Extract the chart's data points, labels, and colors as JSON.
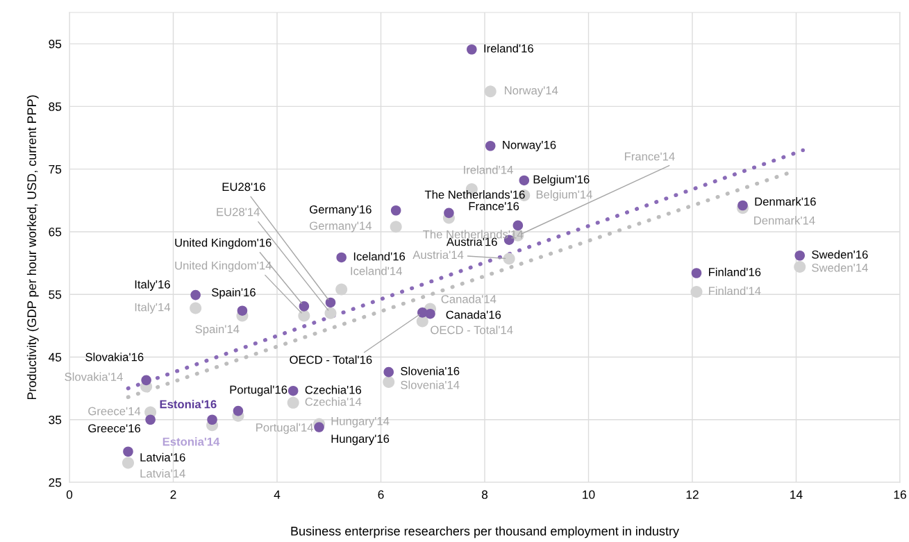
{
  "chart_data": {
    "type": "scatter",
    "xlabel": "Business enterprise researchers per thousand employment in industry",
    "ylabel": "Productivity (GDP per hour worked, USD, current PPP)",
    "xlim": [
      0,
      16
    ],
    "ylim": [
      25,
      100
    ],
    "xticks": [
      0,
      2,
      4,
      6,
      8,
      10,
      12,
      14,
      16
    ],
    "yticks": [
      25,
      35,
      45,
      55,
      65,
      75,
      85,
      95
    ],
    "grid": true,
    "legend": false,
    "marker": "circle",
    "series": [
      {
        "type": "line",
        "color": "#8a6bb8",
        "line_style": "dotted",
        "marker": "none",
        "x": [
          1.13,
          14.13
        ],
        "values": [
          40.0,
          78.0
        ]
      },
      {
        "type": "line",
        "color": "#bdbdbd",
        "line_style": "dotted",
        "marker": "none",
        "x": [
          1.13,
          14.0
        ],
        "values": [
          38.6,
          74.8
        ]
      },
      {
        "color": "#d3d3d3",
        "x": [
          7.75,
          8.11,
          8.76,
          8.64,
          7.31,
          6.29,
          8.47,
          5.24,
          5.03,
          4.52,
          2.43,
          3.33,
          6.95,
          6.8,
          12.97,
          14.07,
          12.08,
          1.48,
          6.15,
          4.31,
          3.25,
          2.75,
          1.56,
          4.81,
          1.13
        ],
        "values": [
          71.8,
          87.4,
          70.8,
          64.4,
          67.2,
          65.8,
          60.7,
          55.8,
          52.0,
          51.6,
          52.8,
          51.6,
          52.7,
          50.7,
          68.8,
          59.4,
          55.4,
          40.3,
          41.0,
          37.7,
          35.6,
          34.1,
          36.2,
          34.3,
          28.1
        ]
      },
      {
        "color": "#7b5aa6",
        "x": [
          7.75,
          8.11,
          8.76,
          7.31,
          6.29,
          8.64,
          8.47,
          5.24,
          5.03,
          4.52,
          2.43,
          3.33,
          6.95,
          6.8,
          12.97,
          14.07,
          12.08,
          1.48,
          6.15,
          4.31,
          3.25,
          2.75,
          1.56,
          4.81,
          1.13
        ],
        "values": [
          94.1,
          78.7,
          73.2,
          68.0,
          68.4,
          66.0,
          63.7,
          60.9,
          53.7,
          53.1,
          54.9,
          52.4,
          51.9,
          52.1,
          69.2,
          61.2,
          58.4,
          41.3,
          42.6,
          39.6,
          36.4,
          35.0,
          35.0,
          33.8,
          29.9
        ]
      }
    ],
    "annotations": [
      {
        "text": "Ireland'16",
        "x": 7.75,
        "y": 94.1
      },
      {
        "text": "Norway'16",
        "x": 8.11,
        "y": 78.7
      },
      {
        "text": "Belgium'16",
        "x": 8.76,
        "y": 73.2
      },
      {
        "text": "The Netherlands'16",
        "x": 7.31,
        "y": 68.0
      },
      {
        "text": "Germany'16",
        "x": 6.29,
        "y": 68.4
      },
      {
        "text": "France'16",
        "x": 8.64,
        "y": 66.0
      },
      {
        "text": "Austria'16",
        "x": 8.47,
        "y": 63.7
      },
      {
        "text": "Iceland'16",
        "x": 5.24,
        "y": 60.9
      },
      {
        "text": "EU28'16",
        "x": 5.03,
        "y": 53.7
      },
      {
        "text": "United Kingdom'16",
        "x": 4.52,
        "y": 53.1
      },
      {
        "text": "Italy'16",
        "x": 2.43,
        "y": 54.9
      },
      {
        "text": "Spain'16",
        "x": 3.33,
        "y": 52.4
      },
      {
        "text": "Canada'16",
        "x": 6.95,
        "y": 51.9
      },
      {
        "text": "OECD - Total'16",
        "x": 6.8,
        "y": 52.1
      },
      {
        "text": "Denmark'16",
        "x": 12.97,
        "y": 69.2
      },
      {
        "text": "Sweden'16",
        "x": 14.07,
        "y": 61.2
      },
      {
        "text": "Finland'16",
        "x": 12.08,
        "y": 58.4
      },
      {
        "text": "Slovakia'16",
        "x": 1.48,
        "y": 41.3
      },
      {
        "text": "Slovenia'16",
        "x": 6.15,
        "y": 42.6
      },
      {
        "text": "Czechia'16",
        "x": 4.31,
        "y": 39.6
      },
      {
        "text": "Portugal'16",
        "x": 3.25,
        "y": 36.4
      },
      {
        "text": "Estonia'16",
        "x": 2.75,
        "y": 35.0
      },
      {
        "text": "Greece'16",
        "x": 1.56,
        "y": 35.0
      },
      {
        "text": "Hungary'16",
        "x": 4.81,
        "y": 33.8
      },
      {
        "text": "Latvia'16",
        "x": 1.13,
        "y": 29.9
      },
      {
        "text": "Ireland'14",
        "x": 7.75,
        "y": 71.8
      },
      {
        "text": "Norway'14",
        "x": 8.11,
        "y": 87.4
      },
      {
        "text": "Belgium'14",
        "x": 8.76,
        "y": 70.8
      },
      {
        "text": "France'14",
        "x": 8.64,
        "y": 64.4
      },
      {
        "text": "The Netherlands'14",
        "x": 7.31,
        "y": 67.2
      },
      {
        "text": "Germany'14",
        "x": 6.29,
        "y": 65.8
      },
      {
        "text": "Austria'14",
        "x": 8.47,
        "y": 60.7
      },
      {
        "text": "Iceland'14",
        "x": 5.24,
        "y": 55.8
      },
      {
        "text": "EU28'14",
        "x": 5.03,
        "y": 52.0
      },
      {
        "text": "United Kingdom'14",
        "x": 4.52,
        "y": 51.6
      },
      {
        "text": "Italy'14",
        "x": 2.43,
        "y": 52.8
      },
      {
        "text": "Spain'14",
        "x": 3.33,
        "y": 51.6
      },
      {
        "text": "Canada'14",
        "x": 6.95,
        "y": 52.7
      },
      {
        "text": "OECD - Total'14",
        "x": 6.8,
        "y": 50.7
      },
      {
        "text": "Denmark'14",
        "x": 12.97,
        "y": 68.8
      },
      {
        "text": "Sweden'14",
        "x": 14.07,
        "y": 59.4
      },
      {
        "text": "Finland'14",
        "x": 12.08,
        "y": 55.4
      },
      {
        "text": "Slovakia'14",
        "x": 1.48,
        "y": 40.3
      },
      {
        "text": "Slovenia'14",
        "x": 6.15,
        "y": 41.0
      },
      {
        "text": "Czechia'14",
        "x": 4.31,
        "y": 37.7
      },
      {
        "text": "Portugal'14",
        "x": 3.25,
        "y": 35.6
      },
      {
        "text": "Estonia'14",
        "x": 2.75,
        "y": 34.1
      },
      {
        "text": "Greece'14",
        "x": 1.56,
        "y": 36.2
      },
      {
        "text": "Hungary'14",
        "x": 4.81,
        "y": 34.3
      },
      {
        "text": "Latvia'14",
        "x": 1.13,
        "y": 28.1
      }
    ]
  }
}
